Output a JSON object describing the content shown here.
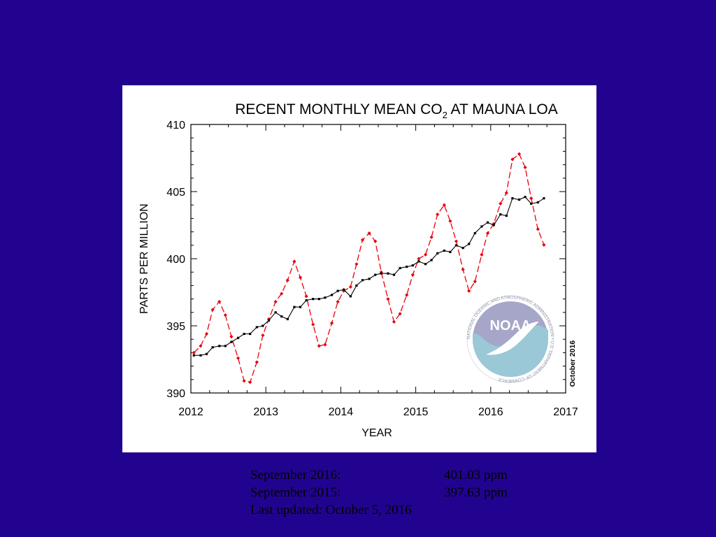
{
  "colors": {
    "background": "#22038f",
    "panel": "#ffffff",
    "trend": "#000000",
    "monthly": "#e8000d",
    "noaa_dark": "#a6a6c8",
    "noaa_light": "#9ac8d6"
  },
  "chart_data": {
    "type": "line",
    "title_prefix": "RECENT MONTHLY MEAN CO",
    "title_subscript": "2",
    "title_suffix": " AT MAUNA LOA",
    "xlabel": "YEAR",
    "ylabel": "PARTS PER MILLION",
    "xlim": [
      2012,
      2017
    ],
    "ylim": [
      390,
      410
    ],
    "xticks": [
      "2012",
      "2013",
      "2014",
      "2015",
      "2016",
      "2017"
    ],
    "yticks": [
      "390",
      "395",
      "400",
      "405",
      "410"
    ],
    "grid": false,
    "side_label": "October 2016",
    "logo_text": "NOAA",
    "logo_ring_text": "NATIONAL OCEANIC AND ATMOSPHERIC ADMINISTRATION • U.S. DEPARTMENT OF COMMERCE",
    "x": [
      2012.04,
      2012.13,
      2012.21,
      2012.29,
      2012.38,
      2012.46,
      2012.54,
      2012.63,
      2012.71,
      2012.79,
      2012.88,
      2012.96,
      2013.04,
      2013.13,
      2013.21,
      2013.29,
      2013.38,
      2013.46,
      2013.54,
      2013.63,
      2013.71,
      2013.79,
      2013.88,
      2013.96,
      2014.04,
      2014.13,
      2014.21,
      2014.29,
      2014.38,
      2014.46,
      2014.54,
      2014.63,
      2014.71,
      2014.79,
      2014.88,
      2014.96,
      2015.04,
      2015.13,
      2015.21,
      2015.29,
      2015.38,
      2015.46,
      2015.54,
      2015.63,
      2015.71,
      2015.79,
      2015.88,
      2015.96,
      2016.04,
      2016.13,
      2016.21,
      2016.29,
      2016.38,
      2016.46,
      2016.54,
      2016.63,
      2016.71
    ],
    "series": [
      {
        "style": "dashed-diamond",
        "values": [
          393.0,
          393.5,
          394.4,
          396.2,
          396.8,
          395.8,
          394.2,
          392.6,
          390.9,
          390.8,
          392.3,
          394.3,
          395.5,
          396.8,
          397.4,
          398.4,
          399.8,
          398.6,
          397.2,
          395.1,
          393.5,
          393.6,
          395.2,
          396.8,
          397.6,
          397.9,
          399.6,
          401.4,
          401.9,
          401.3,
          399.0,
          397.0,
          395.3,
          395.9,
          397.3,
          398.8,
          400.0,
          400.3,
          401.6,
          403.3,
          404.0,
          402.8,
          401.3,
          399.2,
          397.6,
          398.3,
          400.3,
          401.9,
          402.6,
          404.1,
          404.9,
          407.4,
          407.8,
          406.8,
          404.5,
          402.2,
          401.03
        ]
      },
      {
        "style": "solid-square",
        "values": [
          392.8,
          392.8,
          392.9,
          393.4,
          393.5,
          393.5,
          393.8,
          394.1,
          394.4,
          394.4,
          394.9,
          395.0,
          395.4,
          396.0,
          395.7,
          395.5,
          396.4,
          396.4,
          396.9,
          397.0,
          397.0,
          397.1,
          397.3,
          397.6,
          397.7,
          397.2,
          398.0,
          398.4,
          398.5,
          398.8,
          398.9,
          398.9,
          398.8,
          399.3,
          399.4,
          399.5,
          399.8,
          399.6,
          399.9,
          400.4,
          400.6,
          400.5,
          401.0,
          400.8,
          401.1,
          401.9,
          402.4,
          402.7,
          402.5,
          403.3,
          403.2,
          404.5,
          404.4,
          404.6,
          404.1,
          404.2,
          404.5
        ]
      }
    ]
  },
  "caption": {
    "row1_label": "September 2016:",
    "row1_value": "401.03 ppm",
    "row2_label": "September 2015:",
    "row2_value": "397.63 ppm",
    "row3": "Last updated: October 5, 2016"
  }
}
